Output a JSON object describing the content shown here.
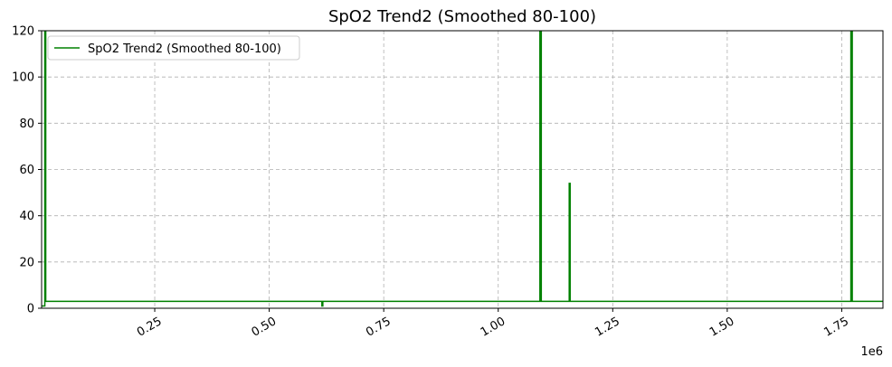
{
  "chart_data": {
    "type": "line",
    "title": "SpO2 Trend2 (Smoothed 80-100)",
    "xlabel": "",
    "ylabel": "",
    "x_offset_label": "1e6",
    "xlim": [
      3000,
      1840000
    ],
    "ylim": [
      0,
      120
    ],
    "x_ticks": [
      {
        "value": 250000,
        "label": "0.25"
      },
      {
        "value": 500000,
        "label": "0.50"
      },
      {
        "value": 750000,
        "label": "0.75"
      },
      {
        "value": 1000000,
        "label": "1.00"
      },
      {
        "value": 1250000,
        "label": "1.25"
      },
      {
        "value": 1500000,
        "label": "1.50"
      },
      {
        "value": 1750000,
        "label": "1.75"
      }
    ],
    "y_ticks": [
      {
        "value": 0,
        "label": "0"
      },
      {
        "value": 20,
        "label": "20"
      },
      {
        "value": 40,
        "label": "40"
      },
      {
        "value": 60,
        "label": "60"
      },
      {
        "value": 80,
        "label": "80"
      },
      {
        "value": 100,
        "label": "100"
      },
      {
        "value": 120,
        "label": "120"
      }
    ],
    "grid": true,
    "legend_position": "top-left",
    "series": [
      {
        "name": "SpO2 Trend2 (Smoothed 80-100)",
        "color": "#008000",
        "x": [
          3000,
          10000,
          10000,
          12000,
          12000,
          13000,
          13000,
          615000,
          615000,
          617000,
          617000,
          1091000,
          1091000,
          1094000,
          1094000,
          1155000,
          1155000,
          1157000,
          1157000,
          1770000,
          1770000,
          1773000,
          1773000,
          1840000
        ],
        "y": [
          1,
          1,
          130,
          130,
          3,
          3,
          3,
          3,
          1,
          1,
          3,
          3,
          130,
          130,
          3,
          3,
          54,
          54,
          3,
          3,
          130,
          130,
          3,
          3
        ]
      }
    ]
  }
}
